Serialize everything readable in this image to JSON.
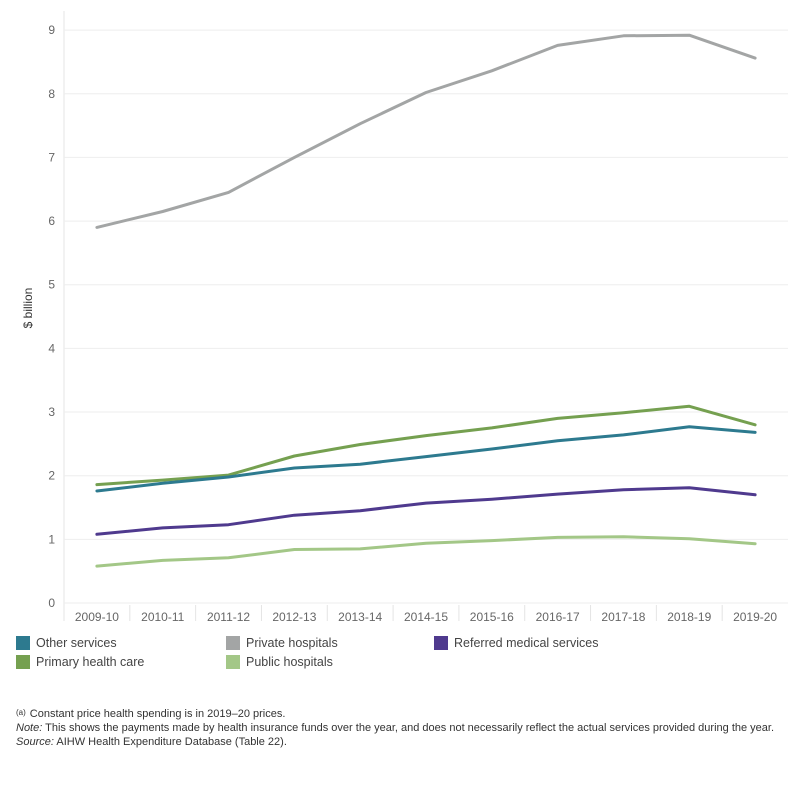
{
  "chart_data": {
    "type": "line",
    "ylabel": "$ billion",
    "xlabel": "",
    "ylim": [
      0,
      9.3
    ],
    "yticks": [
      0,
      1,
      2,
      3,
      4,
      5,
      6,
      7,
      8,
      9
    ],
    "grid": true,
    "legend_position": "bottom",
    "categories": [
      "2009-10",
      "2010-11",
      "2011-12",
      "2012-13",
      "2013-14",
      "2014-15",
      "2015-16",
      "2016-17",
      "2017-18",
      "2018-19",
      "2019-20"
    ],
    "series": [
      {
        "name": "Private hospitals",
        "color": "#a3a5a5",
        "values": [
          5.9,
          6.15,
          6.45,
          7.0,
          7.53,
          8.02,
          8.36,
          8.76,
          8.91,
          8.92,
          8.56
        ]
      },
      {
        "name": "Primary health care",
        "color": "#75a050",
        "values": [
          1.86,
          1.93,
          2.01,
          2.31,
          2.49,
          2.63,
          2.75,
          2.9,
          2.99,
          3.09,
          2.8
        ]
      },
      {
        "name": "Other services",
        "color": "#2d7a8f",
        "values": [
          1.76,
          1.88,
          1.98,
          2.12,
          2.18,
          2.3,
          2.42,
          2.55,
          2.64,
          2.77,
          2.68
        ]
      },
      {
        "name": "Referred medical services",
        "color": "#4f3a8e",
        "values": [
          1.08,
          1.18,
          1.23,
          1.38,
          1.45,
          1.57,
          1.63,
          1.71,
          1.78,
          1.81,
          1.7
        ]
      },
      {
        "name": "Public hospitals",
        "color": "#a3c787",
        "values": [
          0.58,
          0.67,
          0.71,
          0.84,
          0.85,
          0.94,
          0.98,
          1.03,
          1.04,
          1.01,
          0.93
        ]
      }
    ]
  },
  "legend": [
    {
      "label": "Other services",
      "color": "#2d7a8f"
    },
    {
      "label": "Private hospitals",
      "color": "#a3a5a5"
    },
    {
      "label": "Referred medical services",
      "color": "#4f3a8e"
    },
    {
      "label": "Primary health care",
      "color": "#75a050"
    },
    {
      "label": "Public hospitals",
      "color": "#a3c787"
    }
  ],
  "notes": {
    "footnote_marker": "(a)",
    "footnote_text": "Constant price health spending is in 2019–20 prices.",
    "note_label": "Note:",
    "note_text": "This shows the payments made by health insurance funds over the year, and does not necessarily reflect the actual services provided during the year.",
    "source_label": "Source:",
    "source_text": "AIHW Health Expenditure Database (Table 22)."
  }
}
